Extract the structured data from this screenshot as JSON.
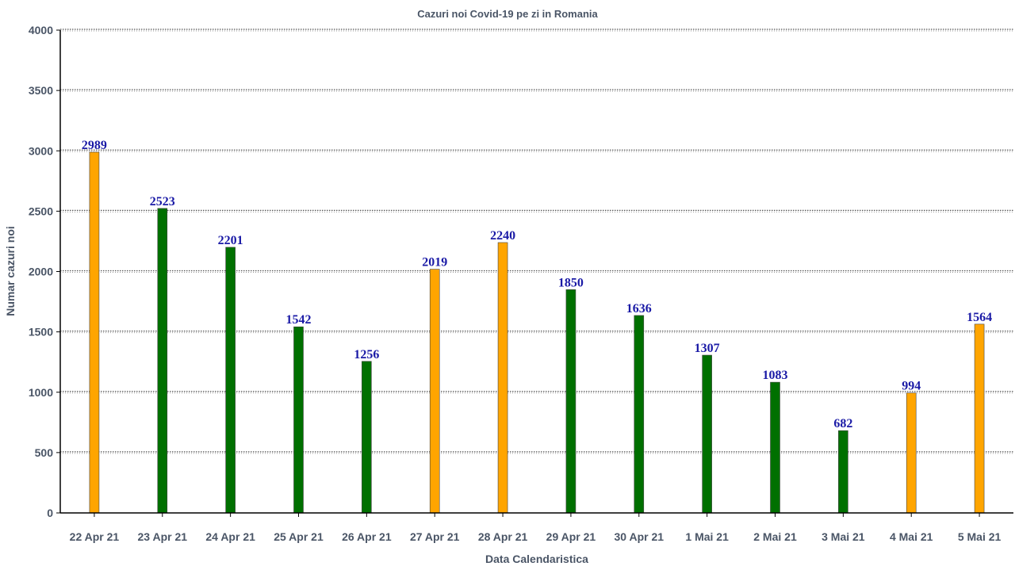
{
  "chart_data": {
    "type": "bar",
    "title": "Cazuri noi Covid-19 pe zi in Romania",
    "xlabel": "Data Calendaristica",
    "ylabel": "Numar cazuri noi",
    "ylim": [
      0,
      4000
    ],
    "yticks": [
      "0",
      "500",
      "1000",
      "1500",
      "2000",
      "2500",
      "3000",
      "3500",
      "4000"
    ],
    "grid": true,
    "categories": [
      "22 Apr 21",
      "23 Apr 21",
      "24 Apr 21",
      "25 Apr 21",
      "26 Apr 21",
      "27 Apr 21",
      "28 Apr 21",
      "29 Apr 21",
      "30 Apr 21",
      "1 Mai 21",
      "2 Mai 21",
      "3 Mai 21",
      "4 Mai 21",
      "5 Mai 21"
    ],
    "values": [
      2989,
      2523,
      2201,
      1542,
      1256,
      2019,
      2240,
      1850,
      1636,
      1307,
      1083,
      682,
      994,
      1564
    ],
    "bar_colors": [
      "#ffa500",
      "#007000",
      "#007000",
      "#007000",
      "#007000",
      "#ffa500",
      "#ffa500",
      "#007000",
      "#007000",
      "#007000",
      "#007000",
      "#007000",
      "#ffa500",
      "#ffa500"
    ]
  }
}
